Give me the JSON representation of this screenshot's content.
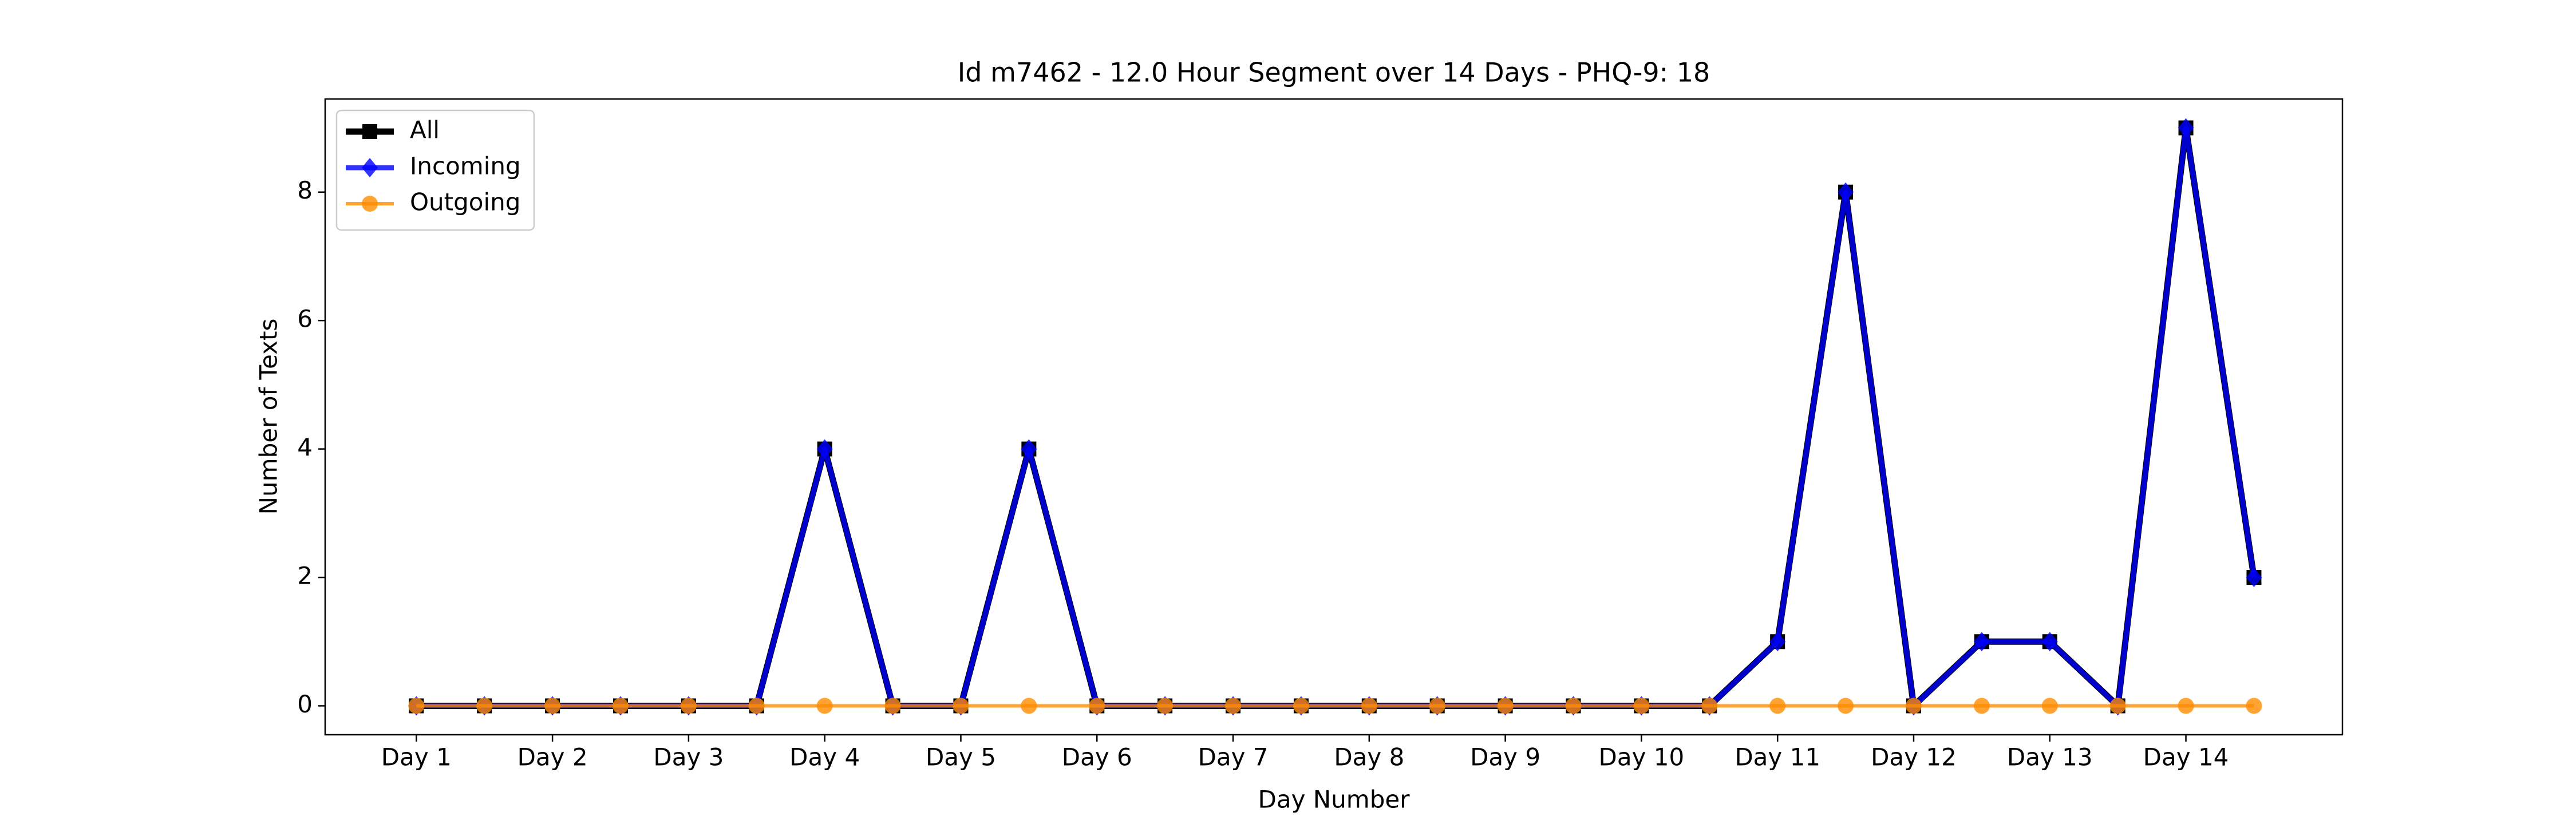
{
  "chart_data": {
    "type": "line",
    "title": "Id m7462 - 12.0 Hour Segment over 14 Days - PHQ-9: 18",
    "x_label": "Day Number",
    "y_label": "Number of Texts",
    "categories": [
      "Day 1",
      null,
      "Day 2",
      null,
      "Day 3",
      null,
      "Day 4",
      null,
      "Day 5",
      null,
      "Day 6",
      null,
      "Day 7",
      null,
      "Day 8",
      null,
      "Day 9",
      null,
      "Day 10",
      null,
      "Day 11",
      null,
      "Day 12",
      null,
      "Day 13",
      null,
      "Day 14",
      null
    ],
    "series": [
      {
        "name": "All",
        "color": "#000000",
        "marker": "square",
        "values": [
          0,
          0,
          0,
          0,
          0,
          0,
          4,
          0,
          0,
          4,
          0,
          0,
          0,
          0,
          0,
          0,
          0,
          0,
          0,
          0,
          1,
          8,
          0,
          1,
          1,
          0,
          9,
          2
        ]
      },
      {
        "name": "Incoming",
        "color": "#0000ff",
        "marker": "diamond",
        "values": [
          0,
          0,
          0,
          0,
          0,
          0,
          4,
          0,
          0,
          4,
          0,
          0,
          0,
          0,
          0,
          0,
          0,
          0,
          0,
          0,
          1,
          8,
          0,
          1,
          1,
          0,
          9,
          2
        ]
      },
      {
        "name": "Outgoing",
        "color": "#ff8c00",
        "marker": "circle",
        "values": [
          0,
          0,
          0,
          0,
          0,
          0,
          0,
          0,
          0,
          0,
          0,
          0,
          0,
          0,
          0,
          0,
          0,
          0,
          0,
          0,
          0,
          0,
          0,
          0,
          0,
          0,
          0,
          0
        ]
      }
    ],
    "ylim": [
      -0.45,
      9.45
    ],
    "yticks": [
      0,
      2,
      4,
      6,
      8
    ],
    "legend": "upper left"
  }
}
